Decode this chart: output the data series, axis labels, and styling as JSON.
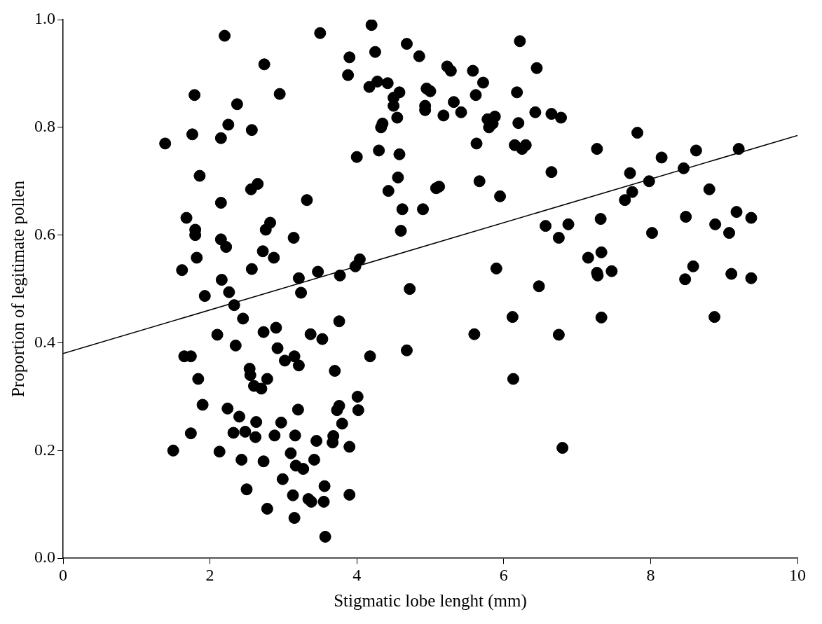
{
  "chart_data": {
    "type": "scatter",
    "xlabel": "Stigmatic lobe lenght (mm)",
    "ylabel": "Proportion of legitimate pollen",
    "xlim": [
      0,
      10
    ],
    "xticks": [
      0,
      2,
      4,
      6,
      8,
      10
    ],
    "ylim": [
      0,
      1
    ],
    "yticks": [
      {
        "value": 0,
        "label": "0.0"
      },
      {
        "value": 0.2,
        "label": "0.2"
      },
      {
        "value": 0.4,
        "label": "0.4"
      },
      {
        "value": 0.6,
        "label": "0.6"
      },
      {
        "value": 0.8,
        "label": "0.8"
      },
      {
        "value": 1,
        "label": "1.0"
      }
    ],
    "grid": false,
    "legend": false,
    "series": [
      {
        "type": "scatter",
        "marker": "circle",
        "color": "#000000",
        "x": [
          1.39,
          1.5,
          1.62,
          1.65,
          1.68,
          1.74,
          1.74,
          1.76,
          1.79,
          1.8,
          1.8,
          1.82,
          1.84,
          1.86,
          1.9,
          1.93,
          2.1,
          2.13,
          2.15,
          2.15,
          2.15,
          2.16,
          2.2,
          2.22,
          2.24,
          2.25,
          2.26,
          2.32,
          2.33,
          2.35,
          2.37,
          2.4,
          2.43,
          2.45,
          2.48,
          2.5,
          2.54,
          2.55,
          2.56,
          2.57,
          2.57,
          2.6,
          2.62,
          2.63,
          2.65,
          2.7,
          2.72,
          2.73,
          2.73,
          2.74,
          2.76,
          2.78,
          2.78,
          2.82,
          2.87,
          2.88,
          2.9,
          2.92,
          2.95,
          2.97,
          2.99,
          3.02,
          3.1,
          3.13,
          3.14,
          3.15,
          3.15,
          3.16,
          3.17,
          3.2,
          3.21,
          3.21,
          3.24,
          3.27,
          3.32,
          3.34,
          3.37,
          3.38,
          3.42,
          3.45,
          3.47,
          3.5,
          3.53,
          3.55,
          3.56,
          3.57,
          3.67,
          3.68,
          3.7,
          3.73,
          3.76,
          3.76,
          3.77,
          3.8,
          3.88,
          3.9,
          3.9,
          3.9,
          3.98,
          4.0,
          4.01,
          4.02,
          4.04,
          4.2,
          4.18,
          4.17,
          4.25,
          4.28,
          4.3,
          4.33,
          4.35,
          4.42,
          4.43,
          4.5,
          4.5,
          4.55,
          4.56,
          4.58,
          4.58,
          4.6,
          4.62,
          4.68,
          4.68,
          4.72,
          4.85,
          4.9,
          4.93,
          4.93,
          4.95,
          5.0,
          5.08,
          5.12,
          5.18,
          5.23,
          5.28,
          5.32,
          5.42,
          5.58,
          5.6,
          5.62,
          5.63,
          5.67,
          5.72,
          5.78,
          5.8,
          5.85,
          5.88,
          5.9,
          5.95,
          6.12,
          6.13,
          6.15,
          6.18,
          6.2,
          6.22,
          6.25,
          6.3,
          6.43,
          6.45,
          6.48,
          6.57,
          6.65,
          6.65,
          6.75,
          6.75,
          6.78,
          6.8,
          6.88,
          7.15,
          7.27,
          7.27,
          7.28,
          7.32,
          7.33,
          7.33,
          7.47,
          7.65,
          7.72,
          7.75,
          7.82,
          7.98,
          8.02,
          8.15,
          8.45,
          8.47,
          8.48,
          8.58,
          8.62,
          8.8,
          8.87,
          8.88,
          9.07,
          9.1,
          9.17,
          9.2,
          9.37,
          9.37
        ],
        "values": [
          0.77,
          0.2,
          0.535,
          0.375,
          0.632,
          0.375,
          0.232,
          0.787,
          0.86,
          0.61,
          0.6,
          0.558,
          0.333,
          0.71,
          0.285,
          0.487,
          0.415,
          0.198,
          0.78,
          0.66,
          0.592,
          0.517,
          0.97,
          0.578,
          0.278,
          0.805,
          0.494,
          0.233,
          0.47,
          0.395,
          0.843,
          0.263,
          0.183,
          0.445,
          0.235,
          0.128,
          0.352,
          0.34,
          0.685,
          0.537,
          0.795,
          0.32,
          0.225,
          0.253,
          0.695,
          0.315,
          0.57,
          0.18,
          0.42,
          0.917,
          0.61,
          0.333,
          0.092,
          0.623,
          0.558,
          0.228,
          0.428,
          0.39,
          0.862,
          0.252,
          0.147,
          0.367,
          0.195,
          0.117,
          0.595,
          0.075,
          0.375,
          0.228,
          0.172,
          0.276,
          0.52,
          0.358,
          0.493,
          0.166,
          0.665,
          0.11,
          0.416,
          0.105,
          0.183,
          0.218,
          0.532,
          0.975,
          0.407,
          0.105,
          0.134,
          0.04,
          0.215,
          0.227,
          0.348,
          0.275,
          0.44,
          0.283,
          0.525,
          0.25,
          0.897,
          0.93,
          0.207,
          0.118,
          0.542,
          0.745,
          0.3,
          0.275,
          0.555,
          0.99,
          0.375,
          0.875,
          0.94,
          0.885,
          0.757,
          0.8,
          0.807,
          0.882,
          0.682,
          0.84,
          0.855,
          0.818,
          0.707,
          0.75,
          0.865,
          0.608,
          0.648,
          0.955,
          0.386,
          0.5,
          0.932,
          0.648,
          0.84,
          0.832,
          0.872,
          0.867,
          0.687,
          0.69,
          0.822,
          0.913,
          0.905,
          0.847,
          0.828,
          0.905,
          0.416,
          0.86,
          0.77,
          0.7,
          0.883,
          0.815,
          0.8,
          0.807,
          0.82,
          0.538,
          0.672,
          0.448,
          0.333,
          0.767,
          0.865,
          0.808,
          0.96,
          0.76,
          0.767,
          0.828,
          0.91,
          0.505,
          0.617,
          0.825,
          0.717,
          0.595,
          0.415,
          0.818,
          0.205,
          0.62,
          0.558,
          0.76,
          0.53,
          0.525,
          0.63,
          0.568,
          0.447,
          0.533,
          0.665,
          0.715,
          0.68,
          0.79,
          0.7,
          0.604,
          0.744,
          0.724,
          0.518,
          0.634,
          0.542,
          0.757,
          0.685,
          0.448,
          0.62,
          0.604,
          0.528,
          0.643,
          0.76,
          0.52,
          0.632
        ]
      },
      {
        "type": "line",
        "marker": "none",
        "color": "#000000",
        "x": [
          0,
          10
        ],
        "values": [
          0.38,
          0.785
        ]
      }
    ]
  }
}
